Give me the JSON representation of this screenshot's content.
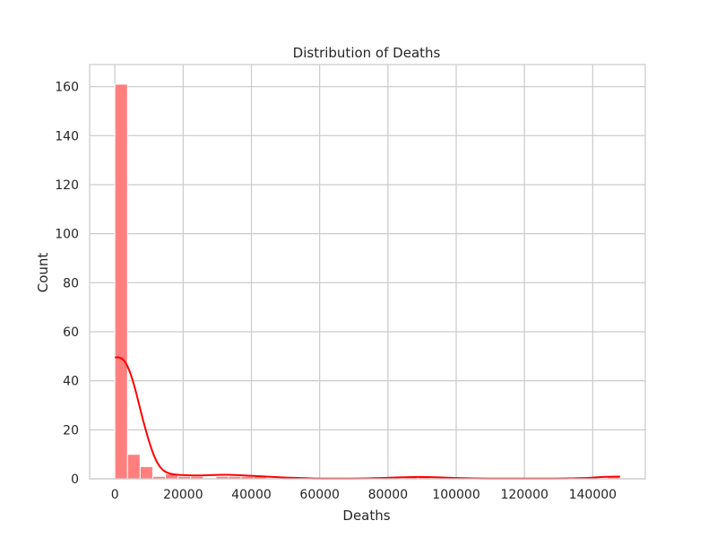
{
  "chart_data": {
    "type": "bar",
    "title": "Distribution of Deaths",
    "xlabel": "Deaths",
    "ylabel": "Count",
    "xlim": [
      -7400,
      155400
    ],
    "ylim": [
      0,
      169
    ],
    "xticks": [
      0,
      20000,
      40000,
      60000,
      80000,
      100000,
      120000,
      140000
    ],
    "yticks": [
      0,
      20,
      40,
      60,
      80,
      100,
      120,
      140,
      160
    ],
    "bin_width": 3700,
    "grid": true,
    "bars": [
      {
        "x0": 0,
        "x1": 3700,
        "count": 161
      },
      {
        "x0": 3700,
        "x1": 7400,
        "count": 10
      },
      {
        "x0": 7400,
        "x1": 11100,
        "count": 5
      },
      {
        "x0": 11100,
        "x1": 14800,
        "count": 1
      },
      {
        "x0": 14800,
        "x1": 18500,
        "count": 2
      },
      {
        "x0": 18500,
        "x1": 22200,
        "count": 1
      },
      {
        "x0": 22200,
        "x1": 25900,
        "count": 1
      },
      {
        "x0": 25900,
        "x1": 29600,
        "count": 0
      },
      {
        "x0": 29600,
        "x1": 33300,
        "count": 1
      },
      {
        "x0": 33300,
        "x1": 37000,
        "count": 1
      },
      {
        "x0": 37000,
        "x1": 40700,
        "count": 1
      },
      {
        "x0": 40700,
        "x1": 44400,
        "count": 1
      },
      {
        "x0": 44400,
        "x1": 48100,
        "count": 0
      },
      {
        "x0": 85100,
        "x1": 88800,
        "count": 1
      },
      {
        "x0": 88800,
        "x1": 92500,
        "count": 1
      },
      {
        "x0": 144300,
        "x1": 148000,
        "count": 1
      }
    ],
    "kde": {
      "color": "#ff0000",
      "points": [
        [
          0,
          49.5
        ],
        [
          1500,
          49.6
        ],
        [
          3000,
          48
        ],
        [
          4500,
          43.5
        ],
        [
          6000,
          36.5
        ],
        [
          7500,
          28
        ],
        [
          9000,
          20
        ],
        [
          10500,
          13
        ],
        [
          12000,
          7.5
        ],
        [
          13500,
          4.2
        ],
        [
          15000,
          2.6
        ],
        [
          17000,
          1.8
        ],
        [
          20000,
          1.5
        ],
        [
          24000,
          1.3
        ],
        [
          28000,
          1.5
        ],
        [
          32000,
          1.7
        ],
        [
          36000,
          1.5
        ],
        [
          40000,
          1.2
        ],
        [
          45000,
          0.9
        ],
        [
          50000,
          0.5
        ],
        [
          55000,
          0.3
        ],
        [
          60000,
          0.1
        ],
        [
          70000,
          0.1
        ],
        [
          78000,
          0.3
        ],
        [
          85000,
          0.7
        ],
        [
          90000,
          0.8
        ],
        [
          95000,
          0.6
        ],
        [
          100000,
          0.3
        ],
        [
          110000,
          0.1
        ],
        [
          120000,
          0.1
        ],
        [
          130000,
          0.1
        ],
        [
          138000,
          0.3
        ],
        [
          143000,
          0.8
        ],
        [
          148000,
          0.9
        ]
      ]
    },
    "bar_color": "#ff7f7f",
    "grid_color": "#cccccc",
    "spine_color": "#cccccc"
  }
}
